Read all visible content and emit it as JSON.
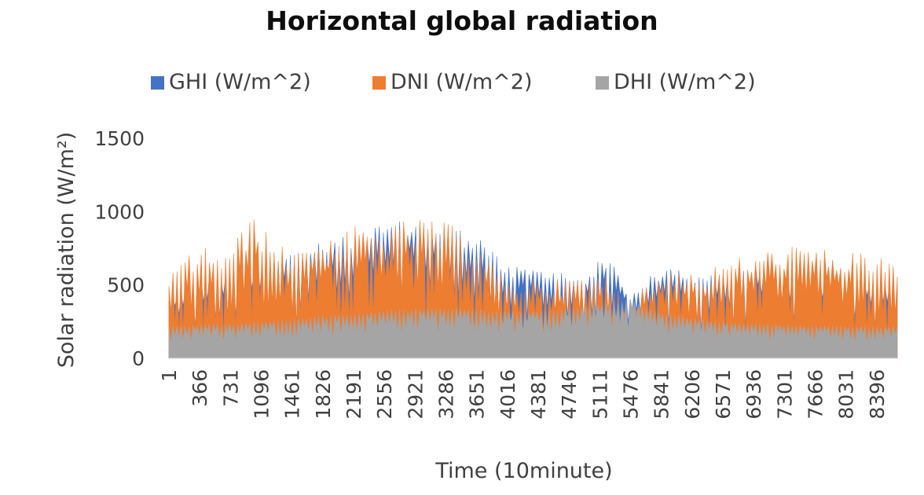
{
  "chart_data": {
    "type": "area",
    "title": "Horizontal global radiation",
    "xlabel": "Time (10minute)",
    "ylabel": "Solar radiation (W/m²)",
    "ylim": [
      0,
      1500
    ],
    "yticks": [
      0,
      500,
      1000,
      1500
    ],
    "xlim": [
      1,
      8640
    ],
    "x_tick_labels": [
      "1",
      "366",
      "731",
      "1096",
      "1461",
      "1826",
      "2191",
      "2556",
      "2921",
      "3286",
      "3651",
      "4016",
      "4381",
      "4746",
      "5111",
      "5476",
      "5841",
      "6206",
      "6571",
      "6936",
      "7301",
      "7666",
      "8031",
      "8396"
    ],
    "grid": false,
    "legend_position": "top",
    "series": [
      {
        "name": "GHI (W/m^2)",
        "color": "#4472C4",
        "points": [
          [
            1,
            430
          ],
          [
            200,
            500
          ],
          [
            400,
            560
          ],
          [
            700,
            600
          ],
          [
            1000,
            660
          ],
          [
            1300,
            700
          ],
          [
            1600,
            760
          ],
          [
            1900,
            800
          ],
          [
            2200,
            850
          ],
          [
            2500,
            910
          ],
          [
            2800,
            940
          ],
          [
            3100,
            930
          ],
          [
            3400,
            900
          ],
          [
            3700,
            820
          ],
          [
            4000,
            640
          ],
          [
            4300,
            620
          ],
          [
            4600,
            600
          ],
          [
            4900,
            560
          ],
          [
            5200,
            720
          ],
          [
            5476,
            440
          ],
          [
            5700,
            560
          ],
          [
            6000,
            640
          ],
          [
            6300,
            560
          ],
          [
            6600,
            580
          ],
          [
            6900,
            640
          ],
          [
            7200,
            620
          ],
          [
            7500,
            600
          ],
          [
            7800,
            580
          ],
          [
            8100,
            560
          ],
          [
            8400,
            540
          ],
          [
            8640,
            520
          ]
        ]
      },
      {
        "name": "DNI (W/m^2)",
        "color": "#ED7D31",
        "points": [
          [
            1,
            560
          ],
          [
            200,
            700
          ],
          [
            400,
            780
          ],
          [
            700,
            720
          ],
          [
            1000,
            1000
          ],
          [
            1300,
            760
          ],
          [
            1600,
            800
          ],
          [
            1900,
            820
          ],
          [
            2200,
            900
          ],
          [
            2500,
            900
          ],
          [
            2800,
            940
          ],
          [
            3100,
            960
          ],
          [
            3400,
            900
          ],
          [
            3700,
            780
          ],
          [
            4000,
            520
          ],
          [
            4300,
            560
          ],
          [
            4600,
            540
          ],
          [
            4900,
            560
          ],
          [
            5200,
            580
          ],
          [
            5476,
            380
          ],
          [
            5700,
            520
          ],
          [
            6000,
            640
          ],
          [
            6300,
            560
          ],
          [
            6600,
            680
          ],
          [
            6900,
            700
          ],
          [
            7200,
            760
          ],
          [
            7500,
            780
          ],
          [
            7800,
            740
          ],
          [
            8100,
            720
          ],
          [
            8400,
            720
          ],
          [
            8640,
            650
          ]
        ]
      },
      {
        "name": "DHI (W/m^2)",
        "color": "#A5A5A5",
        "points": [
          [
            1,
            220
          ],
          [
            400,
            230
          ],
          [
            800,
            240
          ],
          [
            1200,
            260
          ],
          [
            1600,
            280
          ],
          [
            2000,
            300
          ],
          [
            2400,
            320
          ],
          [
            2800,
            340
          ],
          [
            3200,
            350
          ],
          [
            3600,
            340
          ],
          [
            4000,
            320
          ],
          [
            4400,
            330
          ],
          [
            4800,
            350
          ],
          [
            5200,
            380
          ],
          [
            5476,
            400
          ],
          [
            5800,
            320
          ],
          [
            6200,
            280
          ],
          [
            6600,
            250
          ],
          [
            7000,
            240
          ],
          [
            7400,
            230
          ],
          [
            7800,
            220
          ],
          [
            8200,
            220
          ],
          [
            8640,
            220
          ]
        ]
      }
    ]
  }
}
